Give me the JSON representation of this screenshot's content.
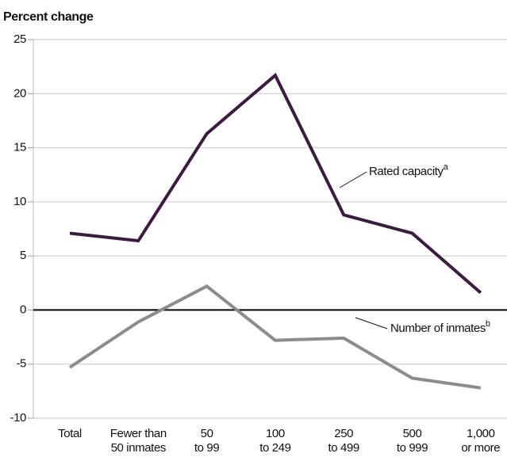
{
  "chart_data": {
    "type": "line",
    "y_label": "Percent change",
    "categories": [
      [
        "Total"
      ],
      [
        "Fewer than",
        "50 inmates"
      ],
      [
        "50",
        "to 99"
      ],
      [
        "100",
        "to 249"
      ],
      [
        "250",
        "to 499"
      ],
      [
        "500",
        "to 999"
      ],
      [
        "1,000",
        "or more"
      ]
    ],
    "series": [
      {
        "name": "Rated capacity",
        "note": "a",
        "color": "#3b1c40",
        "values": [
          7.1,
          6.4,
          16.3,
          21.7,
          8.8,
          7.1,
          1.6
        ]
      },
      {
        "name": "Number of inmates",
        "note": "b",
        "color": "#8c8c8c",
        "values": [
          -5.3,
          -1.1,
          2.2,
          -2.8,
          -2.6,
          -6.3,
          -7.2
        ]
      }
    ],
    "ylim": [
      -10,
      25
    ],
    "yticks": [
      -10,
      -5,
      0,
      5,
      10,
      15,
      20,
      25
    ],
    "grid": true
  }
}
